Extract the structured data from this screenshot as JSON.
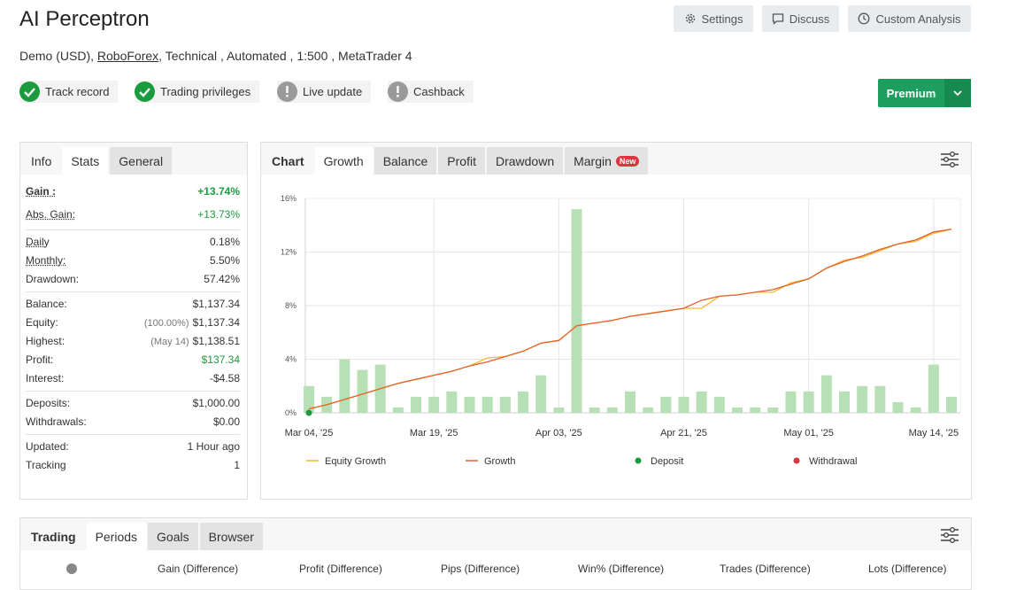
{
  "header": {
    "title": "AI Perceptron",
    "buttons": [
      "Settings",
      "Discuss",
      "Custom Analysis"
    ],
    "account_type": "Demo (USD),",
    "broker": "RoboForex",
    "details": ", Technical , Automated , 1:500 , MetaTrader 4",
    "badges": [
      {
        "label": "Track record",
        "status": "verified"
      },
      {
        "label": "Trading privileges",
        "status": "verified"
      },
      {
        "label": "Live update",
        "status": "unverified"
      },
      {
        "label": "Cashback",
        "status": "unverified"
      }
    ],
    "premium": "Premium"
  },
  "stats_panel": {
    "tabs": [
      "Info",
      "Stats",
      "General"
    ],
    "active_tab": 1,
    "groups": [
      [
        {
          "label": "Gain :",
          "value": "+13.74%",
          "color": "#1a9c3e",
          "dotted": true
        },
        {
          "label": "Abs. Gain:",
          "value": "+13.73%",
          "color": "#1a9c3e",
          "dotted": true
        }
      ],
      [
        {
          "label": "Daily",
          "value": "0.18%",
          "dotted": true
        },
        {
          "label": "Monthly:",
          "value": "5.50%",
          "dotted": true
        },
        {
          "label": "Drawdown:",
          "value": "57.42%"
        }
      ],
      [
        {
          "label": "Balance:",
          "value": "$1,137.34"
        },
        {
          "label": "Equity:",
          "note": "(100.00%)",
          "value": "$1,137.34"
        },
        {
          "label": "Highest:",
          "note": "(May 14)",
          "value": "$1,138.51"
        },
        {
          "label": "Profit:",
          "value": "$137.34",
          "color": "#1a9c3e"
        },
        {
          "label": "Interest:",
          "value": "-$4.58"
        }
      ],
      [
        {
          "label": "Deposits:",
          "value": "$1,000.00"
        },
        {
          "label": "Withdrawals:",
          "value": "$0.00"
        }
      ],
      [
        {
          "label": "Updated:",
          "value": "1 Hour ago"
        },
        {
          "label": "Tracking",
          "value": "1"
        }
      ]
    ]
  },
  "chart_panel": {
    "label": "Chart",
    "tabs": [
      "Growth",
      "Balance",
      "Profit",
      "Drawdown",
      "Margin"
    ],
    "active_tab": 0,
    "new_badge": "New"
  },
  "chart_data": {
    "type": "bar",
    "categories": [
      "Mar 04, '25",
      null,
      null,
      null,
      null,
      null,
      null,
      "Mar 19, '25",
      null,
      null,
      null,
      null,
      null,
      null,
      "Apr 03, '25",
      null,
      null,
      null,
      null,
      null,
      null,
      "Apr 21, '25",
      null,
      null,
      null,
      null,
      null,
      null,
      "May 01, '25",
      null,
      null,
      null,
      null,
      null,
      null,
      "May 14, '25",
      null
    ],
    "bars": {
      "color": "#b8e0b6",
      "values": [
        2.0,
        1.2,
        4.0,
        3.2,
        3.6,
        0.4,
        1.2,
        1.2,
        1.6,
        1.2,
        1.2,
        1.2,
        1.6,
        2.8,
        0.4,
        15.2,
        0.4,
        0.4,
        1.6,
        0.4,
        1.2,
        1.2,
        1.6,
        1.2,
        0.4,
        0.4,
        0.4,
        1.6,
        1.6,
        2.8,
        1.6,
        2.0,
        2.0,
        0.8,
        0.4,
        3.6,
        1.2
      ]
    },
    "series": [
      {
        "name": "Equity Growth",
        "type": "line",
        "color": "#f5b82e",
        "values": [
          0.3,
          0.6,
          1.0,
          1.4,
          1.8,
          2.2,
          2.5,
          2.8,
          3.1,
          3.5,
          4.1,
          4.2,
          4.6,
          5.2,
          5.4,
          6.5,
          6.7,
          6.9,
          7.2,
          7.4,
          7.6,
          7.8,
          7.8,
          8.7,
          8.8,
          9.0,
          9.0,
          9.7,
          10.0,
          10.8,
          11.4,
          11.6,
          12.1,
          12.6,
          12.8,
          13.4,
          13.7
        ]
      },
      {
        "name": "Growth",
        "type": "line",
        "color": "#e2622c",
        "values": [
          0.3,
          0.6,
          1.0,
          1.4,
          1.8,
          2.2,
          2.5,
          2.8,
          3.1,
          3.5,
          3.8,
          4.2,
          4.6,
          5.2,
          5.4,
          6.5,
          6.7,
          6.9,
          7.2,
          7.4,
          7.6,
          7.8,
          8.4,
          8.7,
          8.8,
          9.0,
          9.2,
          9.6,
          10.0,
          10.8,
          11.3,
          11.7,
          12.2,
          12.6,
          12.9,
          13.5,
          13.7
        ]
      },
      {
        "name": "Deposit",
        "type": "scatter",
        "color": "#1a9c3e",
        "values": [
          0,
          null,
          null,
          null,
          null,
          null,
          null,
          null,
          null,
          null,
          null,
          null,
          null,
          null,
          null,
          null,
          null,
          null,
          null,
          null,
          null,
          null,
          null,
          null,
          null,
          null,
          null,
          null,
          null,
          null,
          null,
          null,
          null,
          null,
          null,
          null,
          null
        ]
      },
      {
        "name": "Withdrawal",
        "type": "scatter",
        "color": "#d9363e",
        "values": [
          null,
          null,
          null,
          null,
          null,
          null,
          null,
          null,
          null,
          null,
          null,
          null,
          null,
          null,
          null,
          null,
          null,
          null,
          null,
          null,
          null,
          null,
          null,
          null,
          null,
          null,
          null,
          null,
          null,
          null,
          null,
          null,
          null,
          null,
          null,
          null,
          null
        ]
      }
    ],
    "ylim": [
      0,
      16
    ],
    "yticks": [
      {
        "value": 0,
        "label": "0%"
      },
      {
        "value": 4,
        "label": "4%"
      },
      {
        "value": 8,
        "label": "8%"
      },
      {
        "value": 12,
        "label": "12%"
      },
      {
        "value": 16,
        "label": "16%"
      }
    ],
    "grid": true
  },
  "bottom_panel": {
    "label": "Trading",
    "tabs": [
      "Periods",
      "Goals",
      "Browser"
    ],
    "active_tab": 0,
    "columns": [
      "Gain (Difference)",
      "Profit (Difference)",
      "Pips (Difference)",
      "Win% (Difference)",
      "Trades (Difference)",
      "Lots (Difference)"
    ]
  }
}
